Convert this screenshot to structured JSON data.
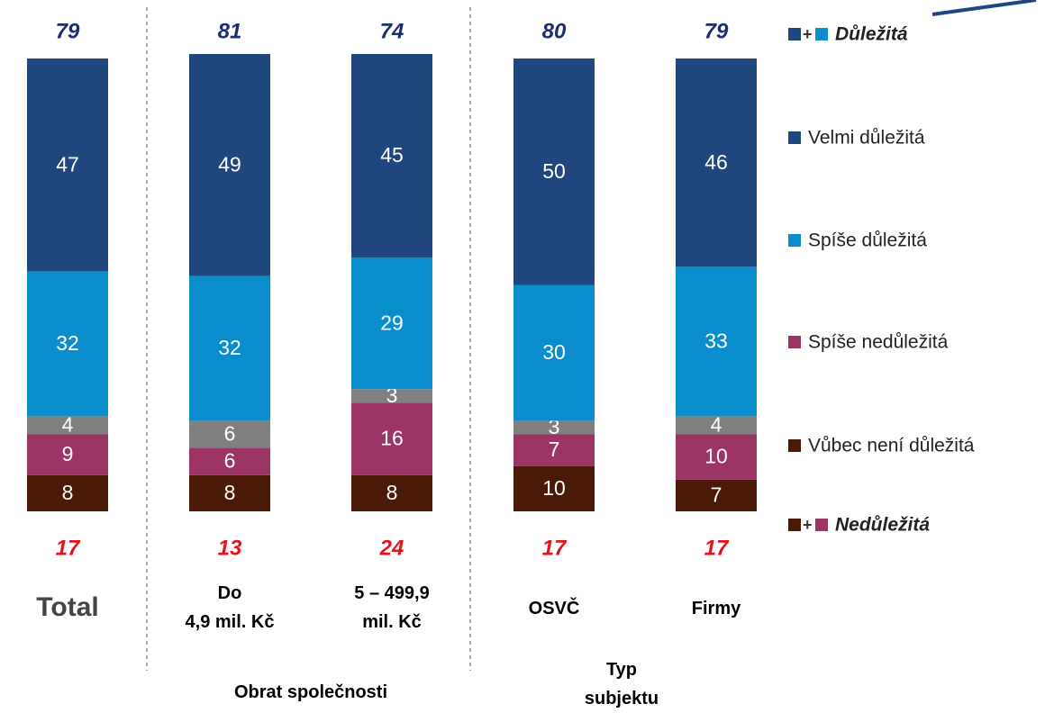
{
  "chart_data": {
    "type": "bar",
    "stacked": true,
    "categories": [
      [
        "Total"
      ],
      [
        "Do",
        "4,9 mil. Kč"
      ],
      [
        "5 – 499,9",
        "mil. Kč"
      ],
      [
        "OSVČ"
      ],
      [
        "Firmy"
      ]
    ],
    "group_labels": [
      [
        "Obrat společnosti"
      ],
      [
        "Typ",
        "subjektu"
      ]
    ],
    "ylim": [
      0,
      100
    ],
    "series": [
      {
        "name": "Vůbec není důležitá",
        "color": "#4a1a06",
        "values": [
          8,
          8,
          8,
          10,
          7
        ]
      },
      {
        "name": "Spíše nedůležitá",
        "color": "#9c3466",
        "values": [
          9,
          6,
          16,
          7,
          10
        ]
      },
      {
        "color": "#808080",
        "values": [
          4,
          6,
          3,
          3,
          4
        ]
      },
      {
        "name": "Spíše důležitá",
        "color": "#0a8dcc",
        "values": [
          32,
          32,
          29,
          30,
          33
        ]
      },
      {
        "name": "Velmi důležitá",
        "color": "#1f477d",
        "values": [
          47,
          49,
          45,
          50,
          46
        ]
      }
    ],
    "top_totals": {
      "name": "Důležitá",
      "color": "#1c2e6e",
      "values": [
        79,
        81,
        74,
        80,
        79
      ]
    },
    "bottom_totals": {
      "name": "Nedůležitá",
      "color": "#e3141b",
      "values": [
        17,
        13,
        24,
        17,
        17
      ]
    },
    "legend_joiner": "+"
  }
}
